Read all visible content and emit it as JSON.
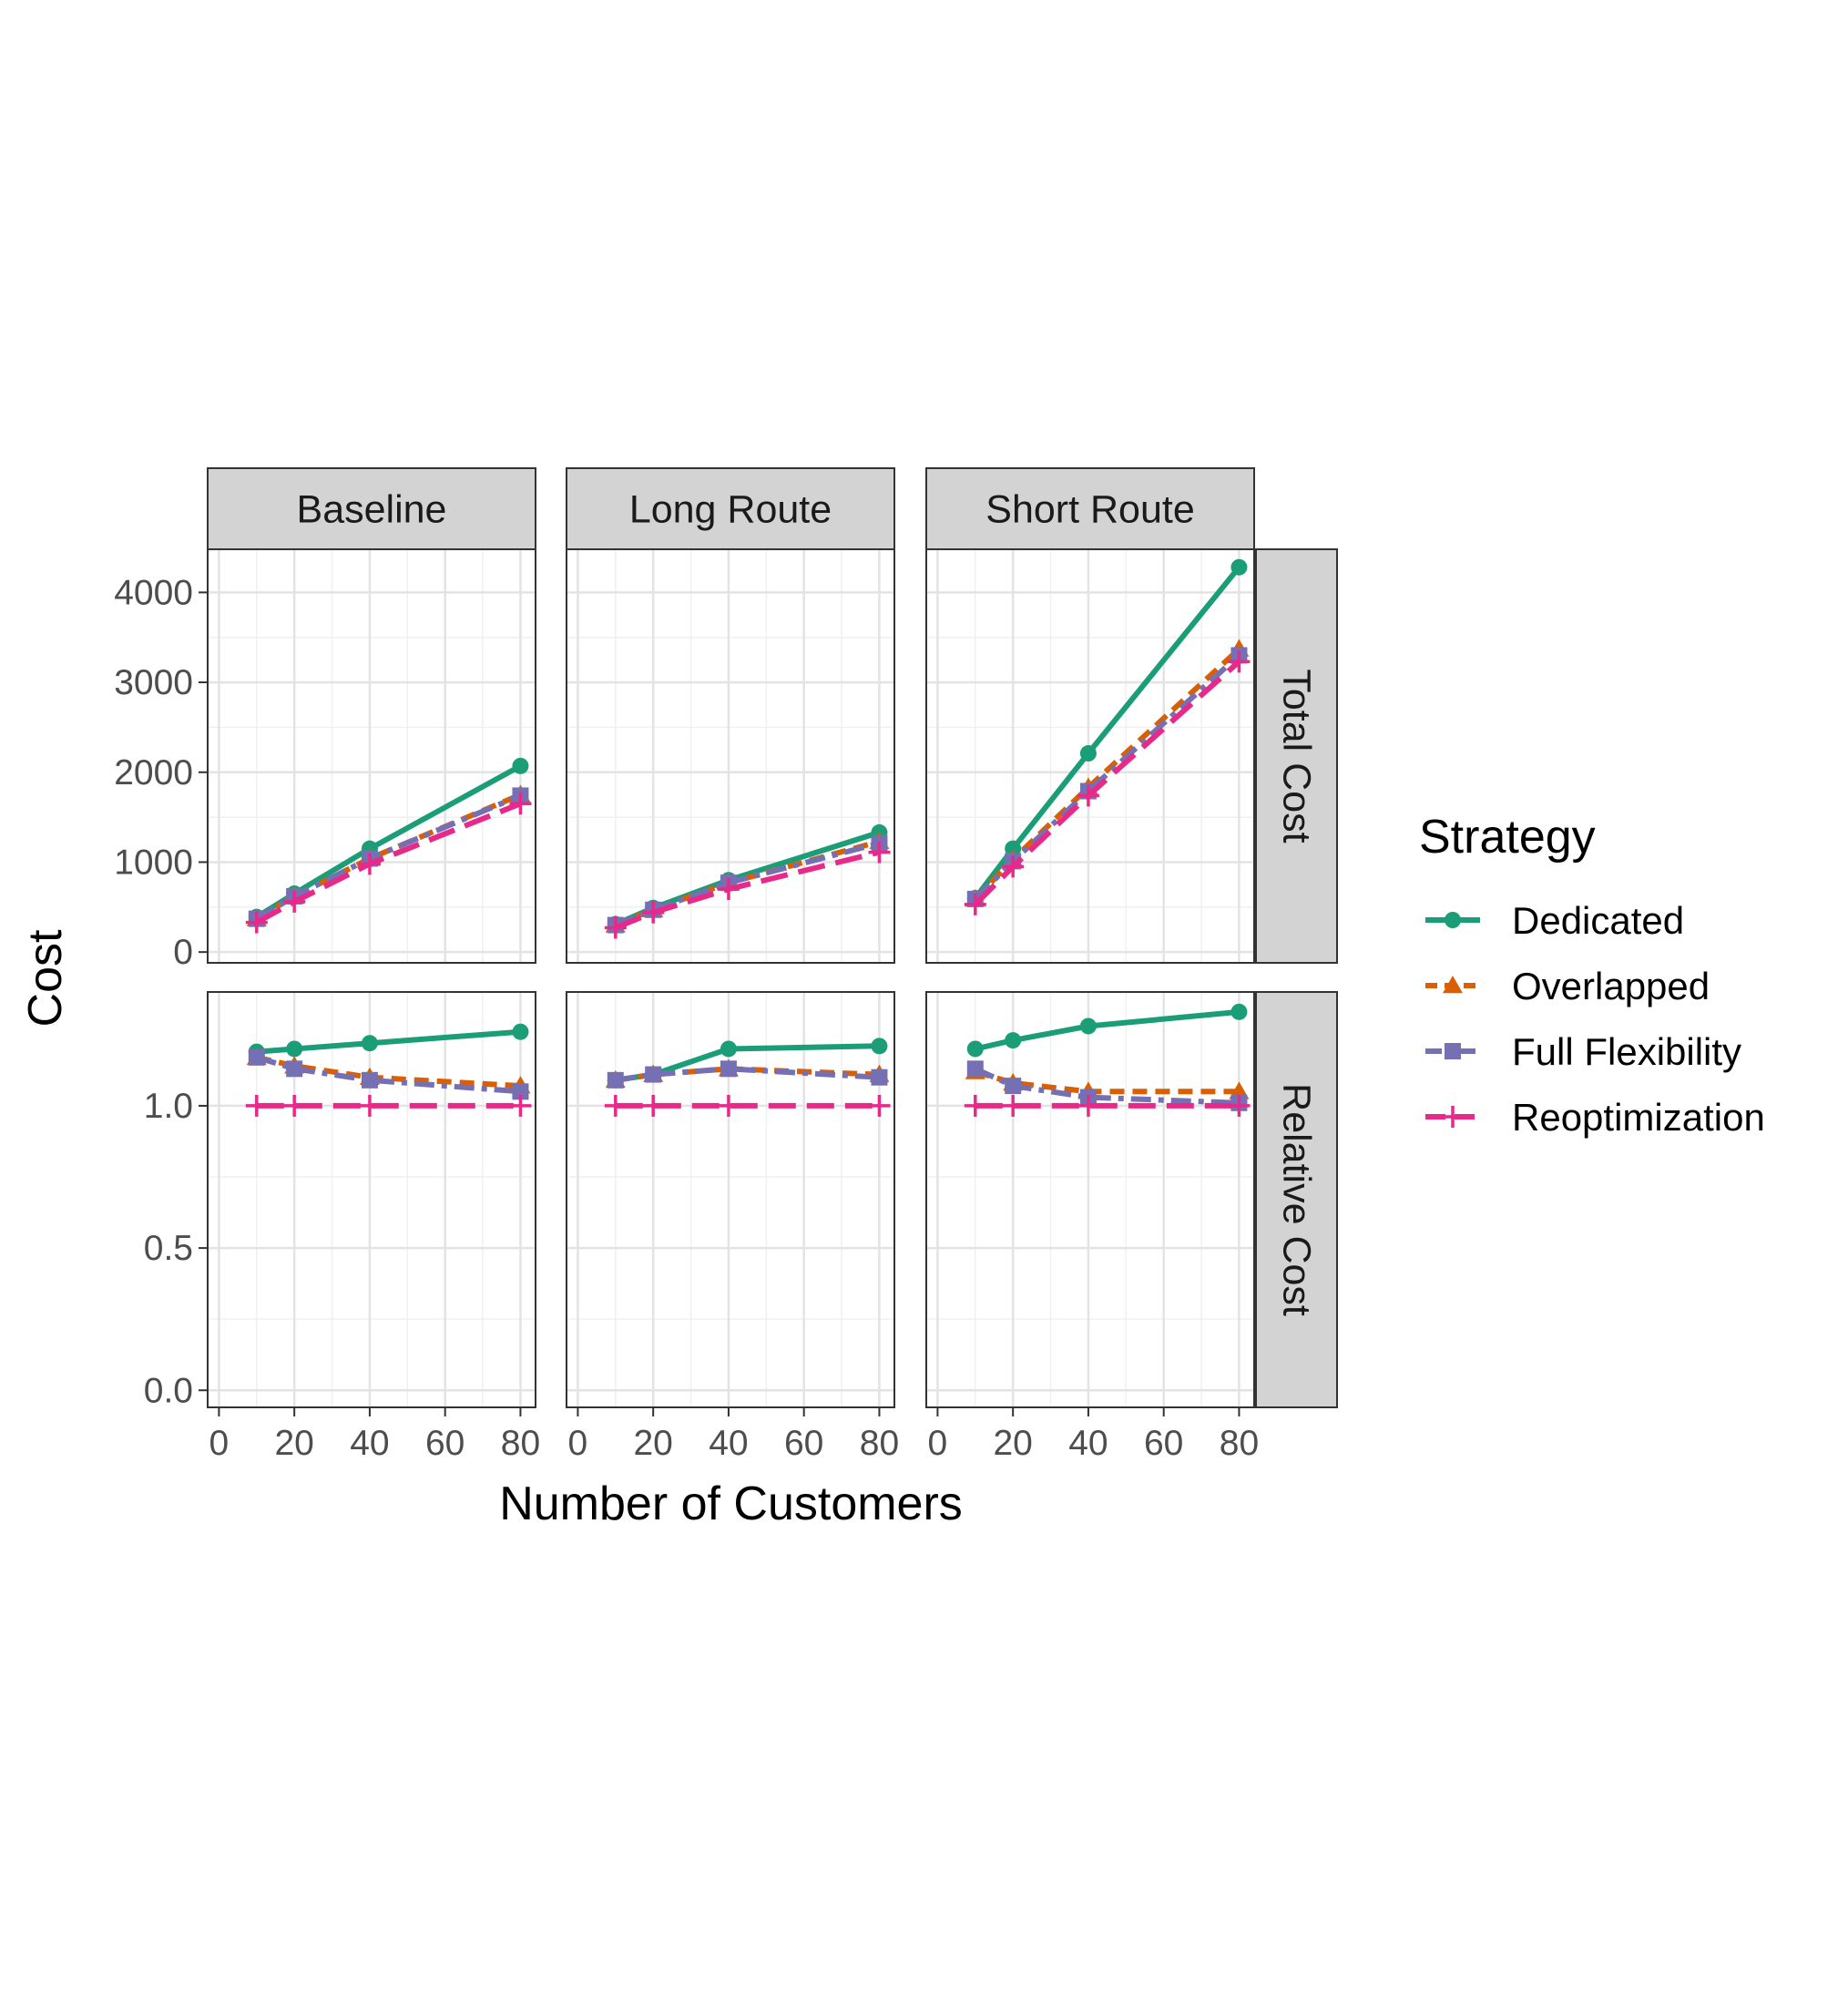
{
  "chart_data": {
    "type": "line",
    "facet_columns": [
      "Baseline",
      "Long Route",
      "Short Route"
    ],
    "facet_rows": [
      "Total Cost",
      "Relative Cost"
    ],
    "xlabel": "Number of Customers",
    "ylabel": "Cost",
    "x": [
      10,
      20,
      40,
      80
    ],
    "x_ticks": [
      0,
      20,
      40,
      60,
      80
    ],
    "xlim": [
      -3,
      84
    ],
    "rows": [
      {
        "name": "Total Cost",
        "ylim": [
          -120,
          4480
        ],
        "y_ticks": [
          0,
          1000,
          2000,
          3000,
          4000
        ],
        "y_tick_labels": [
          "0",
          "1000",
          "2000",
          "3000",
          "4000"
        ]
      },
      {
        "name": "Relative Cost",
        "ylim": [
          -0.06,
          1.4
        ],
        "y_ticks": [
          0.0,
          0.5,
          1.0
        ],
        "y_tick_labels": [
          "0.0",
          "0.5",
          "1.0"
        ]
      }
    ],
    "legend": {
      "title": "Strategy",
      "position": "right"
    },
    "grid": true,
    "series": [
      {
        "name": "Dedicated",
        "color": "#1B9E77",
        "marker": "circle",
        "linetype": "solid"
      },
      {
        "name": "Overlapped",
        "color": "#D95F02",
        "marker": "triangle",
        "linetype": "dashed"
      },
      {
        "name": "Full Flexibility",
        "color": "#7570B3",
        "marker": "square",
        "linetype": "dashdot"
      },
      {
        "name": "Reoptimization",
        "color": "#E7298A",
        "marker": "plus",
        "linetype": "longdash"
      }
    ],
    "values": {
      "Total Cost": {
        "Baseline": {
          "Dedicated": [
            390,
            650,
            1150,
            2070
          ],
          "Overlapped": [
            370,
            620,
            1040,
            1750
          ],
          "Full Flexibility": [
            370,
            620,
            1040,
            1740
          ],
          "Reoptimization": [
            330,
            560,
            980,
            1650
          ]
        },
        "Long Route": {
          "Dedicated": [
            310,
            490,
            800,
            1330
          ],
          "Overlapped": [
            300,
            470,
            770,
            1230
          ],
          "Full Flexibility": [
            300,
            470,
            770,
            1210
          ],
          "Reoptimization": [
            270,
            440,
            700,
            1110
          ]
        },
        "Short Route": {
          "Dedicated": [
            600,
            1150,
            2210,
            4280
          ],
          "Overlapped": [
            590,
            1030,
            1830,
            3370
          ],
          "Full Flexibility": [
            590,
            1010,
            1790,
            3300
          ],
          "Reoptimization": [
            530,
            950,
            1740,
            3230
          ]
        }
      },
      "Relative Cost": {
        "Baseline": {
          "Dedicated": [
            1.19,
            1.2,
            1.22,
            1.26
          ],
          "Overlapped": [
            1.17,
            1.14,
            1.1,
            1.07
          ],
          "Full Flexibility": [
            1.17,
            1.13,
            1.09,
            1.05
          ],
          "Reoptimization": [
            1.0,
            1.0,
            1.0,
            1.0
          ]
        },
        "Long Route": {
          "Dedicated": [
            1.09,
            1.11,
            1.2,
            1.21
          ],
          "Overlapped": [
            1.09,
            1.11,
            1.13,
            1.11
          ],
          "Full Flexibility": [
            1.09,
            1.11,
            1.13,
            1.1
          ],
          "Reoptimization": [
            1.0,
            1.0,
            1.0,
            1.0
          ]
        },
        "Short Route": {
          "Dedicated": [
            1.2,
            1.23,
            1.28,
            1.33
          ],
          "Overlapped": [
            1.12,
            1.08,
            1.05,
            1.05
          ],
          "Full Flexibility": [
            1.13,
            1.07,
            1.03,
            1.01
          ],
          "Reoptimization": [
            1.0,
            1.0,
            1.0,
            1.0
          ]
        }
      }
    }
  }
}
